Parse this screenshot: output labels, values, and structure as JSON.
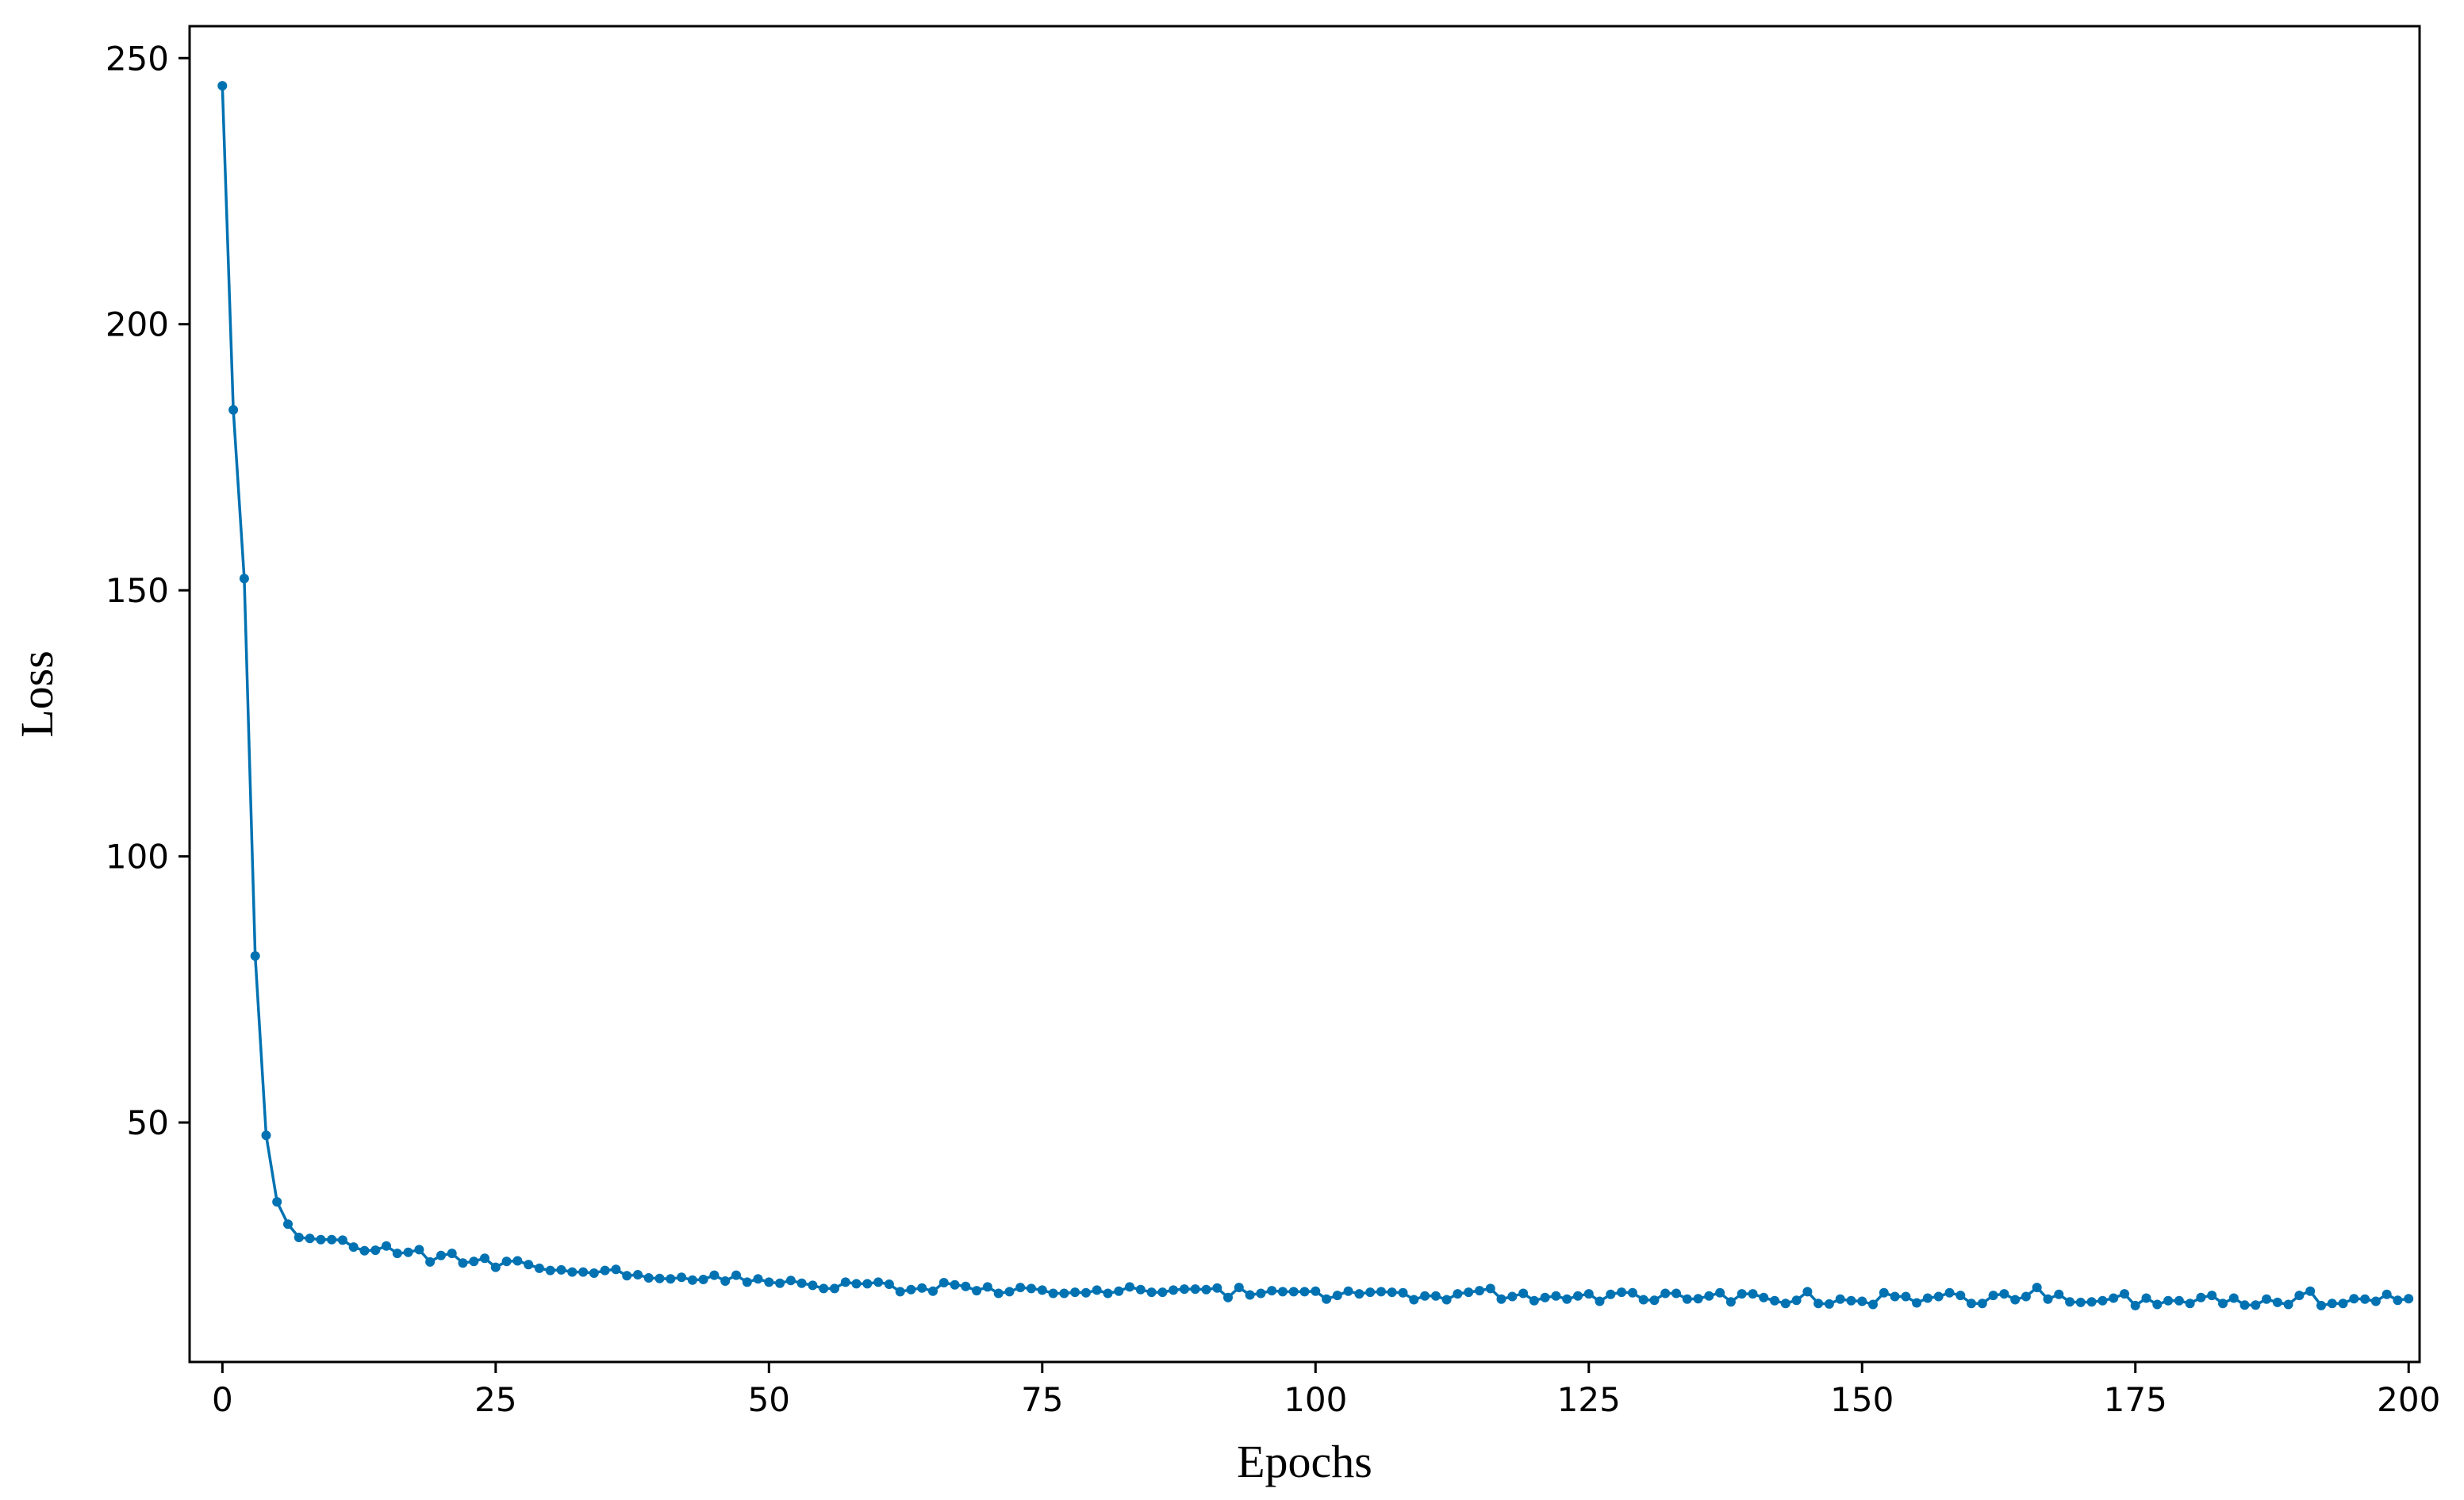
{
  "chart_data": {
    "type": "line",
    "title": "",
    "xlabel": "Epochs",
    "ylabel": "Loss",
    "xlim": [
      -3,
      201
    ],
    "ylim": [
      5,
      256
    ],
    "xticks": [
      0,
      25,
      50,
      75,
      100,
      125,
      150,
      175,
      200
    ],
    "yticks": [
      50,
      100,
      150,
      200,
      250
    ],
    "grid": false,
    "legend": "none",
    "color": "#0072b2",
    "series": [
      {
        "x_start": 0,
        "x_step": 1,
        "values": [
          244.8,
          183.9,
          152.2,
          81.3,
          47.6,
          35.1,
          30.9,
          28.4,
          28.2,
          28.0,
          28.0,
          27.9,
          26.6,
          25.9,
          26.0,
          26.8,
          25.4,
          25.6,
          26.1,
          23.8,
          25.0,
          25.4,
          23.6,
          23.9,
          24.5,
          22.8,
          23.9,
          24.0,
          23.3,
          22.6,
          22.2,
          22.3,
          21.9,
          21.9,
          21.7,
          22.2,
          22.4,
          21.2,
          21.4,
          20.8,
          20.7,
          20.6,
          20.9,
          20.4,
          20.5,
          21.3,
          20.2,
          21.3,
          20.0,
          20.6,
          20.0,
          19.8,
          20.3,
          19.8,
          19.4,
          18.8,
          18.8,
          20.0,
          19.7,
          19.7,
          20.0,
          19.6,
          18.2,
          18.6,
          18.9,
          18.3,
          19.9,
          19.5,
          19.2,
          18.4,
          19.1,
          17.9,
          18.2,
          19.0,
          18.8,
          18.5,
          17.9,
          17.9,
          18.1,
          18.0,
          18.5,
          17.9,
          18.3,
          19.1,
          18.6,
          18.1,
          18.1,
          18.5,
          18.7,
          18.7,
          18.6,
          18.9,
          17.1,
          19.0,
          17.6,
          17.9,
          18.4,
          18.2,
          18.2,
          18.2,
          18.3,
          16.8,
          17.5,
          18.3,
          17.8,
          18.1,
          18.2,
          18.1,
          18.0,
          16.7,
          17.4,
          17.4,
          16.7,
          17.8,
          18.1,
          18.4,
          18.8,
          16.8,
          17.3,
          17.9,
          16.5,
          17.1,
          17.4,
          16.8,
          17.4,
          17.8,
          16.4,
          17.7,
          18.1,
          18.0,
          16.7,
          16.6,
          17.9,
          17.9,
          16.8,
          16.9,
          17.4,
          18.0,
          16.3,
          17.8,
          17.8,
          17.1,
          16.5,
          16.0,
          16.6,
          18.2,
          16.0,
          15.9,
          16.8,
          16.5,
          16.4,
          15.8,
          18.0,
          17.3,
          17.3,
          16.1,
          17.0,
          17.3,
          18.0,
          17.5,
          16.0,
          16.0,
          17.5,
          17.8,
          16.7,
          17.3,
          19.0,
          16.8,
          17.7,
          16.3,
          16.2,
          16.3,
          16.5,
          17.0,
          17.8,
          15.6,
          17.0,
          15.8,
          16.5,
          16.5,
          16.0,
          17.1,
          17.5,
          16.0,
          17.0,
          15.7,
          15.7,
          16.8,
          16.2,
          15.8,
          17.5,
          18.3,
          15.6,
          16.0,
          16.0,
          16.9,
          16.8,
          16.4,
          17.7,
          16.6,
          16.9
        ]
      }
    ]
  }
}
